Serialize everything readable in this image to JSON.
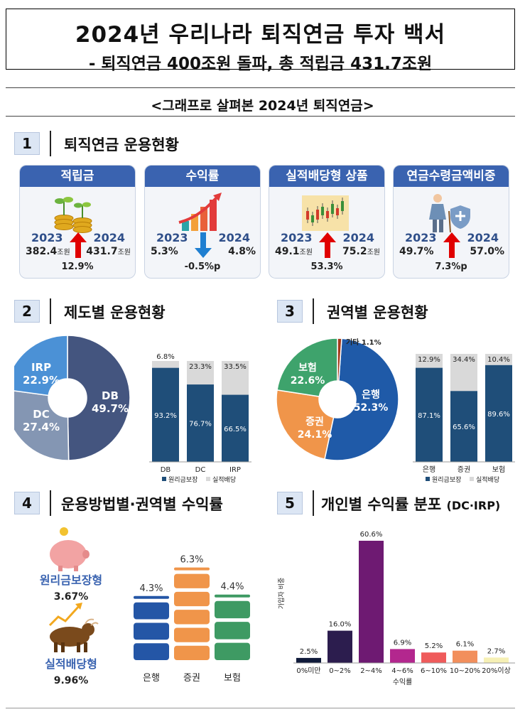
{
  "title": "2024년 우리나라 퇴직연금 투자 백서",
  "subtitle_line": "- 퇴직연금 400조원 돌파, 총 적립금 431.7조원",
  "section_heading": "<그래프로 살펴본 2024년 퇴직연금>",
  "sections": {
    "s1": {
      "num": "1",
      "title": "퇴직연금 운용현황"
    },
    "s2": {
      "num": "2",
      "title": "제도별 운용현황"
    },
    "s3": {
      "num": "3",
      "title": "권역별 운용현황"
    },
    "s4": {
      "num": "4",
      "title": "운용방법별·권역별 수익률"
    },
    "s5": {
      "num": "5",
      "title": "개인별 수익률 분포",
      "suffix": "(DC·IRP)"
    }
  },
  "cards": [
    {
      "title": "적립금",
      "y1": "2023",
      "y2": "2024",
      "v1": "382.4",
      "u1": "조원",
      "v2": "431.7",
      "u2": "조원",
      "change": "12.9%",
      "direction": "up",
      "icon": "coins-sprout-icon"
    },
    {
      "title": "수익률",
      "y1": "2023",
      "y2": "2024",
      "v1": "5.3%",
      "u1": "",
      "v2": "4.8%",
      "u2": "",
      "change": "-0.5%p",
      "direction": "down",
      "icon": "growth-bars-icon"
    },
    {
      "title": "실적배당형 상품",
      "y1": "2023",
      "y2": "2024",
      "v1": "49.1",
      "u1": "조원",
      "v2": "75.2",
      "u2": "조원",
      "change": "53.3%",
      "direction": "up",
      "icon": "candlestick-icon"
    },
    {
      "title": "연금수령금액비중",
      "y1": "2023",
      "y2": "2024",
      "v1": "49.7%",
      "u1": "",
      "v2": "57.0%",
      "u2": "",
      "change": "7.3%p",
      "direction": "up",
      "icon": "elderly-shield-icon"
    }
  ],
  "colors": {
    "navy": "#1f4e79",
    "blue": "#3a63b0",
    "gray": "#d9d9d9",
    "up": "#e00000",
    "down": "#1f7fd1"
  },
  "chart_data": [
    {
      "type": "pie",
      "id": "plan-donut",
      "labels": [
        "DB",
        "DC",
        "IRP"
      ],
      "values": [
        49.7,
        27.4,
        22.9
      ],
      "value_labels": [
        "49.7%",
        "27.4%",
        "22.9%"
      ],
      "colors": [
        "#44557f",
        "#8496b3",
        "#4b91d6"
      ]
    },
    {
      "type": "bar",
      "id": "plan-bars",
      "stacked": true,
      "categories": [
        "DB",
        "DC",
        "IRP"
      ],
      "series": [
        {
          "name": "원리금보장",
          "values": [
            93.2,
            76.7,
            66.5
          ]
        },
        {
          "name": "실적배당",
          "values": [
            6.8,
            23.3,
            33.5
          ]
        }
      ],
      "legend": "bottom"
    },
    {
      "type": "pie",
      "id": "sector-donut",
      "labels": [
        "은행",
        "증권",
        "보험",
        "기타"
      ],
      "values": [
        52.3,
        24.1,
        22.6,
        1.1
      ],
      "value_labels": [
        "52.3%",
        "24.1%",
        "22.6%",
        "1.1%"
      ],
      "colors": [
        "#1f5aa8",
        "#f0954a",
        "#3ea36c",
        "#a33a1a"
      ]
    },
    {
      "type": "bar",
      "id": "sector-bars",
      "stacked": true,
      "categories": [
        "은행",
        "증권",
        "보험"
      ],
      "series": [
        {
          "name": "원리금보장",
          "values": [
            87.1,
            65.6,
            89.6
          ]
        },
        {
          "name": "실적배당",
          "values": [
            12.9,
            34.4,
            10.4
          ]
        }
      ],
      "legend": "bottom"
    },
    {
      "type": "bar",
      "id": "sector-return",
      "categories": [
        "은행",
        "증권",
        "보험"
      ],
      "values": [
        4.3,
        6.3,
        4.4
      ],
      "value_labels": [
        "4.3%",
        "6.3%",
        "4.4%"
      ],
      "colors": [
        "#2456a6",
        "#f0954a",
        "#3e9a63"
      ]
    },
    {
      "type": "bar",
      "id": "return-dist",
      "categories": [
        "0%미만",
        "0~2%",
        "2~4%",
        "4~6%",
        "6~10%",
        "10~20%",
        "20%이상"
      ],
      "values": [
        2.5,
        16.0,
        60.6,
        6.9,
        5.2,
        6.1,
        2.7
      ],
      "value_labels": [
        "2.5%",
        "16.0%",
        "60.6%",
        "6.9%",
        "5.2%",
        "6.1%",
        "2.7%"
      ],
      "xlabel": "수익률",
      "ylabel": "가입자 비중",
      "colors": [
        "#0f1a3a",
        "#2c1d4e",
        "#6e1a72",
        "#b3278e",
        "#ef5b5b",
        "#f28f5c",
        "#f6f0b5"
      ]
    }
  ],
  "return_types": [
    {
      "label": "원리금보장형",
      "value": "3.67%",
      "icon": "piggy-bank-icon"
    },
    {
      "label": "실적배당형",
      "value": "9.96%",
      "icon": "bull-icon"
    }
  ]
}
